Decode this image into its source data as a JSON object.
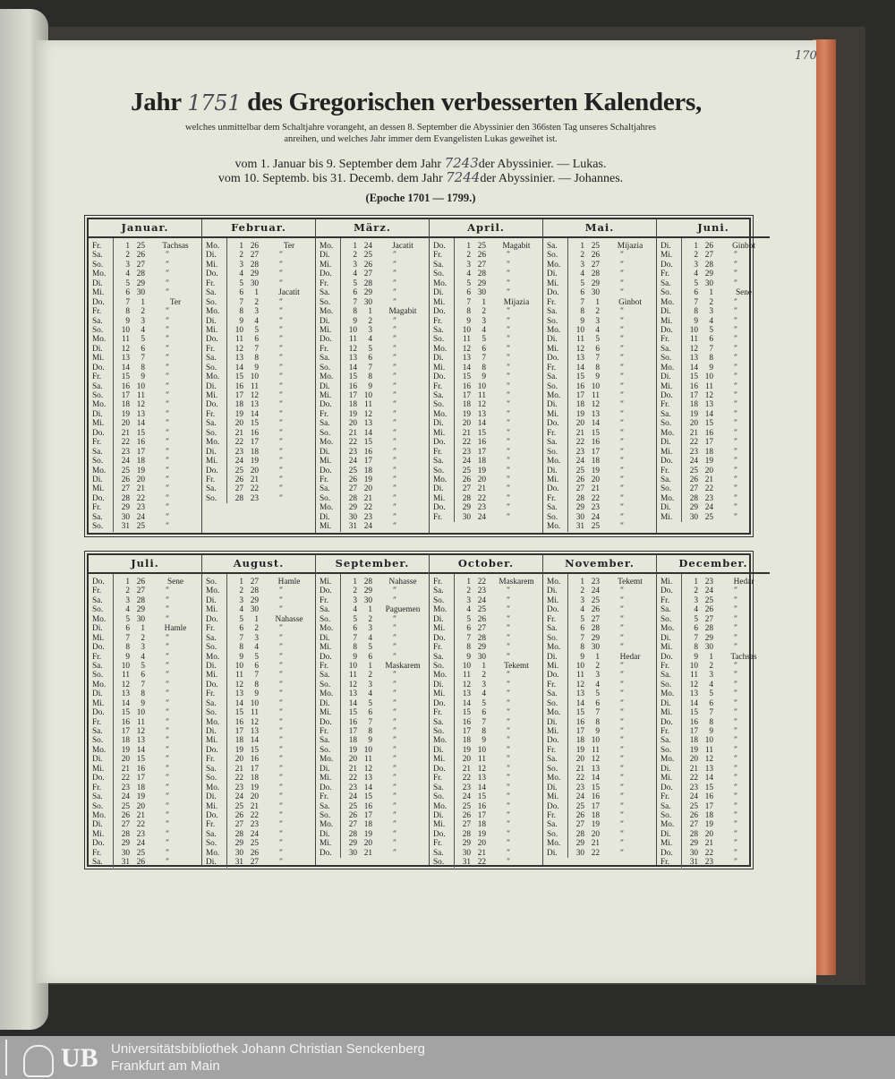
{
  "page_number": "170",
  "title": {
    "prefix": "Jahr",
    "year": "1751",
    "suffix": "des Gregorischen verbesserten Kalenders,"
  },
  "subtitle": [
    "welches unmittelbar dem Schaltjahre vorangeht, an dessen 8. September die Abyssinier den 366sten Tag unseres Schaltjahres",
    "anreihen, und welches Jahr immer dem Evangelisten Lukas geweihet ist."
  ],
  "line1": {
    "pre": "vom 1. Januar bis 9. September dem Jahr",
    "year": "7243",
    "post": "der Abyssinier. — Lukas."
  },
  "line2": {
    "pre": "vom 10. Septemb. bis 31. Decemb. dem Jahr",
    "year": "7244",
    "post": "der Abyssinier. — Johannes."
  },
  "epoche": "(Epoche 1701 — 1799.)",
  "footer": {
    "logo": "UB",
    "line1": "Universitätsbibliothek Johann Christian Senckenberg",
    "line2": "Frankfurt am Main"
  },
  "colors": {
    "paper": "#e5e7db",
    "edge": "#c8704a",
    "footer": "#a3a3a3"
  },
  "months": [
    {
      "name": "Januar.",
      "rows": [
        "Fr. 1 25 Tachsas",
        "Sa. 2 26 ″",
        "So. 3 27 ″",
        "Mo. 4 28 ″",
        "Di. 5 29 ″",
        "Mi. 6 30 ″",
        "Do. 7 1 Ter",
        "Fr. 8 2 ″",
        "Sa. 9 3 ″",
        "So. 10 4 ″",
        "Mo. 11 5 ″",
        "Di. 12 6 ″",
        "Mi. 13 7 ″",
        "Do. 14 8 ″",
        "Fr. 15 9 ″",
        "Sa. 16 10 ″",
        "So. 17 11 ″",
        "Mo. 18 12 ″",
        "Di. 19 13 ″",
        "Mi. 20 14 ″",
        "Do. 21 15 ″",
        "Fr. 22 16 ″",
        "Sa. 23 17 ″",
        "So. 24 18 ″",
        "Mo. 25 19 ″",
        "Di. 26 20 ″",
        "Mi. 27 21 ″",
        "Do. 28 22 ″",
        "Fr. 29 23 ″",
        "Sa. 30 24 ″",
        "So. 31 25 ″"
      ]
    },
    {
      "name": "Februar.",
      "rows": [
        "Mo. 1 26 Ter",
        "Di. 2 27 ″",
        "Mi. 3 28 ″",
        "Do. 4 29 ″",
        "Fr. 5 30 ″",
        "Sa. 6 1 Jacatit",
        "So. 7 2 ″",
        "Mo. 8 3 ″",
        "Di. 9 4 ″",
        "Mi. 10 5 ″",
        "Do. 11 6 ″",
        "Fr. 12 7 ″",
        "Sa. 13 8 ″",
        "So. 14 9 ″",
        "Mo. 15 10 ″",
        "Di. 16 11 ″",
        "Mi. 17 12 ″",
        "Do. 18 13 ″",
        "Fr. 19 14 ″",
        "Sa. 20 15 ″",
        "So. 21 16 ″",
        "Mo. 22 17 ″",
        "Di. 23 18 ″",
        "Mi. 24 19 ″",
        "Do. 25 20 ″",
        "Fr. 26 21 ″",
        "Sa. 27 22 ″",
        "So. 28 23 ″"
      ]
    },
    {
      "name": "März.",
      "rows": [
        "Mo. 1 24 Jacatit",
        "Di. 2 25 ″",
        "Mi. 3 26 ″",
        "Do. 4 27 ″",
        "Fr. 5 28 ″",
        "Sa. 6 29 ″",
        "So. 7 30 ″",
        "Mo. 8 1 Magabit",
        "Di. 9 2 ″",
        "Mi. 10 3 ″",
        "Do. 11 4 ″",
        "Fr. 12 5 ″",
        "Sa. 13 6 ″",
        "So. 14 7 ″",
        "Mo. 15 8 ″",
        "Di. 16 9 ″",
        "Mi. 17 10 ″",
        "Do. 18 11 ″",
        "Fr. 19 12 ″",
        "Sa. 20 13 ″",
        "So. 21 14 ″",
        "Mo. 22 15 ″",
        "Di. 23 16 ″",
        "Mi. 24 17 ″",
        "Do. 25 18 ″",
        "Fr. 26 19 ″",
        "Sa. 27 20 ″",
        "So. 28 21 ″",
        "Mo. 29 22 ″",
        "Di. 30 23 ″",
        "Mi. 31 24 ″"
      ]
    },
    {
      "name": "April.",
      "rows": [
        "Do. 1 25 Magabit",
        "Fr. 2 26 ″",
        "Sa. 3 27 ″",
        "So. 4 28 ″",
        "Mo. 5 29 ″",
        "Di. 6 30 ″",
        "Mi. 7 1 Mijazia",
        "Do. 8 2 ″",
        "Fr. 9 3 ″",
        "Sa. 10 4 ″",
        "So. 11 5 ″",
        "Mo. 12 6 ″",
        "Di. 13 7 ″",
        "Mi. 14 8 ″",
        "Do. 15 9 ″",
        "Fr. 16 10 ″",
        "Sa. 17 11 ″",
        "So. 18 12 ″",
        "Mo. 19 13 ″",
        "Di. 20 14 ″",
        "Mi. 21 15 ″",
        "Do. 22 16 ″",
        "Fr. 23 17 ″",
        "Sa. 24 18 ″",
        "So. 25 19 ″",
        "Mo. 26 20 ″",
        "Di. 27 21 ″",
        "Mi. 28 22 ″",
        "Do. 29 23 ″",
        "Fr. 30 24 ″"
      ]
    },
    {
      "name": "Mai.",
      "rows": [
        "Sa. 1 25 Mijazia",
        "So. 2 26 ″",
        "Mo. 3 27 ″",
        "Di. 4 28 ″",
        "Mi. 5 29 ″",
        "Do. 6 30 ″",
        "Fr. 7 1 Ginbot",
        "Sa. 8 2 ″",
        "So. 9 3 ″",
        "Mo. 10 4 ″",
        "Di. 11 5 ″",
        "Mi. 12 6 ″",
        "Do. 13 7 ″",
        "Fr. 14 8 ″",
        "Sa. 15 9 ″",
        "So. 16 10 ″",
        "Mo. 17 11 ″",
        "Di. 18 12 ″",
        "Mi. 19 13 ″",
        "Do. 20 14 ″",
        "Fr. 21 15 ″",
        "Sa. 22 16 ″",
        "So. 23 17 ″",
        "Mo. 24 18 ″",
        "Di. 25 19 ″",
        "Mi. 26 20 ″",
        "Do. 27 21 ″",
        "Fr. 28 22 ″",
        "Sa. 29 23 ″",
        "So. 30 24 ″",
        "Mo. 31 25 ″"
      ]
    },
    {
      "name": "Juni.",
      "rows": [
        "Di. 1 26 Ginbot",
        "Mi. 2 27 ″",
        "Do. 3 28 ″",
        "Fr. 4 29 ″",
        "Sa. 5 30 ″",
        "So. 6 1 Sene",
        "Mo. 7 2 ″",
        "Di. 8 3 ″",
        "Mi. 9 4 ″",
        "Do. 10 5 ″",
        "Fr. 11 6 ″",
        "Sa. 12 7 ″",
        "So. 13 8 ″",
        "Mo. 14 9 ″",
        "Di. 15 10 ″",
        "Mi. 16 11 ″",
        "Do. 17 12 ″",
        "Fr. 18 13 ″",
        "Sa. 19 14 ″",
        "So. 20 15 ″",
        "Mo. 21 16 ″",
        "Di. 22 17 ″",
        "Mi. 23 18 ″",
        "Do. 24 19 ″",
        "Fr. 25 20 ″",
        "Sa. 26 21 ″",
        "So. 27 22 ″",
        "Mo. 28 23 ″",
        "Di. 29 24 ″",
        "Mi. 30 25 ″"
      ]
    },
    {
      "name": "Juli.",
      "rows": [
        "Do. 1 26 Sene",
        "Fr. 2 27 ″",
        "Sa. 3 28 ″",
        "So. 4 29 ″",
        "Mo. 5 30 ″",
        "Di. 6 1 Hamle",
        "Mi. 7 2 ″",
        "Do. 8 3 ″",
        "Fr. 9 4 ″",
        "Sa. 10 5 ″",
        "So. 11 6 ″",
        "Mo. 12 7 ″",
        "Di. 13 8 ″",
        "Mi. 14 9 ″",
        "Do. 15 10 ″",
        "Fr. 16 11 ″",
        "Sa. 17 12 ″",
        "So. 18 13 ″",
        "Mo. 19 14 ″",
        "Di. 20 15 ″",
        "Mi. 21 16 ″",
        "Do. 22 17 ″",
        "Fr. 23 18 ″",
        "Sa. 24 19 ″",
        "So. 25 20 ″",
        "Mo. 26 21 ″",
        "Di. 27 22 ″",
        "Mi. 28 23 ″",
        "Do. 29 24 ″",
        "Fr. 30 25 ″",
        "Sa. 31 26 ″"
      ]
    },
    {
      "name": "August.",
      "rows": [
        "So. 1 27 Hamle",
        "Mo. 2 28 ″",
        "Di. 3 29 ″",
        "Mi. 4 30 ″",
        "Do. 5 1 Nahasse",
        "Fr. 6 2 ″",
        "Sa. 7 3 ″",
        "So. 8 4 ″",
        "Mo. 9 5 ″",
        "Di. 10 6 ″",
        "Mi. 11 7 ″",
        "Do. 12 8 ″",
        "Fr. 13 9 ″",
        "Sa. 14 10 ″",
        "So. 15 11 ″",
        "Mo. 16 12 ″",
        "Di. 17 13 ″",
        "Mi. 18 14 ″",
        "Do. 19 15 ″",
        "Fr. 20 16 ″",
        "Sa. 21 17 ″",
        "So. 22 18 ″",
        "Mo. 23 19 ″",
        "Di. 24 20 ″",
        "Mi. 25 21 ″",
        "Do. 26 22 ″",
        "Fr. 27 23 ″",
        "Sa. 28 24 ″",
        "So. 29 25 ″",
        "Mo. 30 26 ″",
        "Di. 31 27 ″"
      ]
    },
    {
      "name": "September.",
      "rows": [
        "Mi. 1 28 Nahasse",
        "Do. 2 29 ″",
        "Fr. 3 30 ″",
        "Sa. 4 1 Paguemen",
        "So. 5 2 ″",
        "Mo. 6 3 ″",
        "Di. 7 4 ″",
        "Mi. 8 5 ″",
        "Do. 9 6 ″",
        "Fr. 10 1 Maskarem",
        "Sa. 11 2 ″",
        "So. 12 3 ″",
        "Mo. 13 4 ″",
        "Di. 14 5 ″",
        "Mi. 15 6 ″",
        "Do. 16 7 ″",
        "Fr. 17 8 ″",
        "Sa. 18 9 ″",
        "So. 19 10 ″",
        "Mo. 20 11 ″",
        "Di. 21 12 ″",
        "Mi. 22 13 ″",
        "Do. 23 14 ″",
        "Fr. 24 15 ″",
        "Sa. 25 16 ″",
        "So. 26 17 ″",
        "Mo. 27 18 ″",
        "Di. 28 19 ″",
        "Mi. 29 20 ″",
        "Do. 30 21 ″"
      ]
    },
    {
      "name": "October.",
      "rows": [
        "Fr. 1 22 Maskarem",
        "Sa. 2 23 ″",
        "So. 3 24 ″",
        "Mo. 4 25 ″",
        "Di. 5 26 ″",
        "Mi. 6 27 ″",
        "Do. 7 28 ″",
        "Fr. 8 29 ″",
        "Sa. 9 30 ″",
        "So. 10 1 Tekemt",
        "Mo. 11 2 ″",
        "Di. 12 3 ″",
        "Mi. 13 4 ″",
        "Do. 14 5 ″",
        "Fr. 15 6 ″",
        "Sa. 16 7 ″",
        "So. 17 8 ″",
        "Mo. 18 9 ″",
        "Di. 19 10 ″",
        "Mi. 20 11 ″",
        "Do. 21 12 ″",
        "Fr. 22 13 ″",
        "Sa. 23 14 ″",
        "So. 24 15 ″",
        "Mo. 25 16 ″",
        "Di. 26 17 ″",
        "Mi. 27 18 ″",
        "Do. 28 19 ″",
        "Fr. 29 20 ″",
        "Sa. 30 21 ″",
        "So. 31 22 ″"
      ]
    },
    {
      "name": "November.",
      "rows": [
        "Mo. 1 23 Tekemt",
        "Di. 2 24 ″",
        "Mi. 3 25 ″",
        "Do. 4 26 ″",
        "Fr. 5 27 ″",
        "Sa. 6 28 ″",
        "So. 7 29 ″",
        "Mo. 8 30 ″",
        "Di. 9 1 Hedar",
        "Mi. 10 2 ″",
        "Do. 11 3 ″",
        "Fr. 12 4 ″",
        "Sa. 13 5 ″",
        "So. 14 6 ″",
        "Mo. 15 7 ″",
        "Di. 16 8 ″",
        "Mi. 17 9 ″",
        "Do. 18 10 ″",
        "Fr. 19 11 ″",
        "Sa. 20 12 ″",
        "So. 21 13 ″",
        "Mo. 22 14 ″",
        "Di. 23 15 ″",
        "Mi. 24 16 ″",
        "Do. 25 17 ″",
        "Fr. 26 18 ″",
        "Sa. 27 19 ″",
        "So. 28 20 ″",
        "Mo. 29 21 ″",
        "Di. 30 22 ″"
      ]
    },
    {
      "name": "December.",
      "rows": [
        "Mi. 1 23 Hedar",
        "Do. 2 24 ″",
        "Fr. 3 25 ″",
        "Sa. 4 26 ″",
        "So. 5 27 ″",
        "Mo. 6 28 ″",
        "Di. 7 29 ″",
        "Mi. 8 30 ″",
        "Do. 9 1 Tachsas",
        "Fr. 10 2 ″",
        "Sa. 11 3 ″",
        "So. 12 4 ″",
        "Mo. 13 5 ″",
        "Di. 14 6 ″",
        "Mi. 15 7 ″",
        "Do. 16 8 ″",
        "Fr. 17 9 ″",
        "Sa. 18 10 ″",
        "So. 19 11 ″",
        "Mo. 20 12 ″",
        "Di. 21 13 ″",
        "Mi. 22 14 ″",
        "Do. 23 15 ″",
        "Fr. 24 16 ″",
        "Sa. 25 17 ″",
        "So. 26 18 ″",
        "Mo. 27 19 ″",
        "Di. 28 20 ″",
        "Mi. 29 21 ″",
        "Do. 30 22 ″",
        "Fr. 31 23 ″"
      ]
    }
  ]
}
